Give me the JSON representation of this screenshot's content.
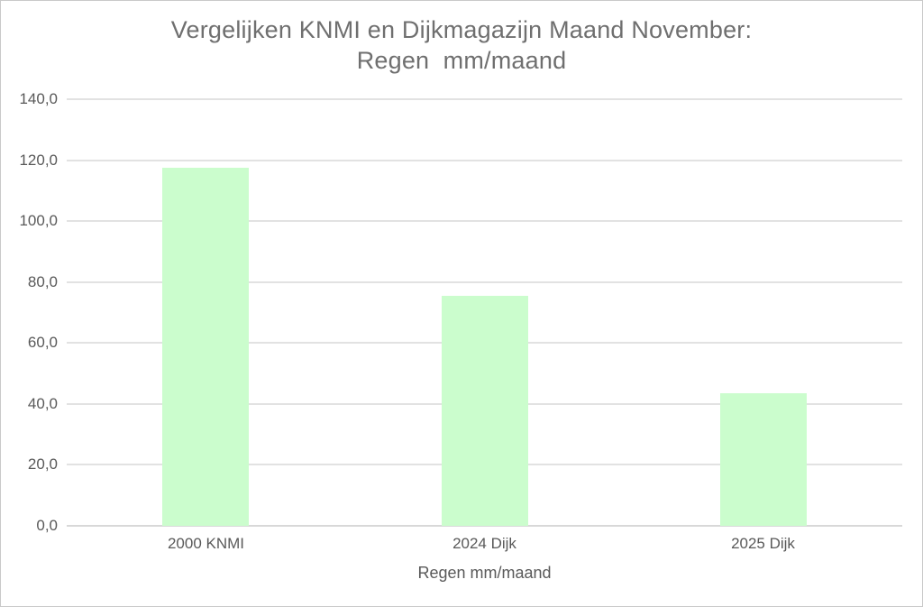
{
  "chart_data": {
    "type": "bar",
    "title_line1": "Vergelijken KNMI en Dijkmagazijn Maand November:",
    "title_line2": "Regen  mm/maand",
    "categories": [
      "2000 KNMI",
      "2024 Dijk",
      "2025 Dijk"
    ],
    "values": [
      117.5,
      75.5,
      43.5
    ],
    "xlabel": "Regen mm/maand",
    "ylabel": "",
    "ylim": [
      0,
      140
    ],
    "ytick_step": 20,
    "ytick_labels": [
      "0,0",
      "20,0",
      "40,0",
      "60,0",
      "80,0",
      "100,0",
      "120,0",
      "140,0"
    ],
    "grid": true,
    "legend": "none",
    "colors": {
      "bar_fill": "#cbfdcd",
      "gridline": "#e2e2e2",
      "axis_line": "#d8d8d8",
      "tick_text": "#595959",
      "title_text": "#6f6f6f"
    }
  }
}
